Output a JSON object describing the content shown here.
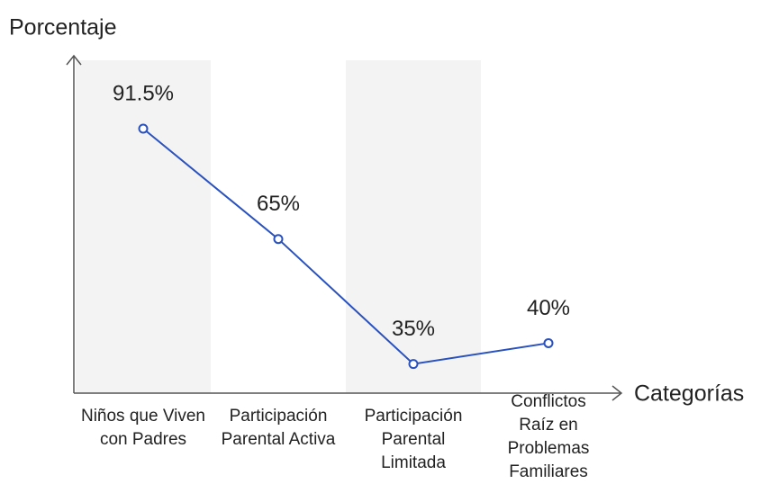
{
  "chart_data": {
    "type": "line",
    "ylabel": "Porcentaje",
    "xlabel": "Categorías",
    "categories": [
      "Niños que Viven con Padres",
      "Participación Parental Activa",
      "Participación Parental Limitada",
      "Conflictos Raíz en Problemas Familiares"
    ],
    "series": [
      {
        "name": "Porcentaje",
        "color": "#2a52be",
        "values": [
          91.5,
          65,
          35,
          40
        ],
        "value_labels": [
          "91.5%",
          "65%",
          "35%",
          "40%"
        ]
      }
    ],
    "ylim": [
      28,
      109
    ]
  }
}
